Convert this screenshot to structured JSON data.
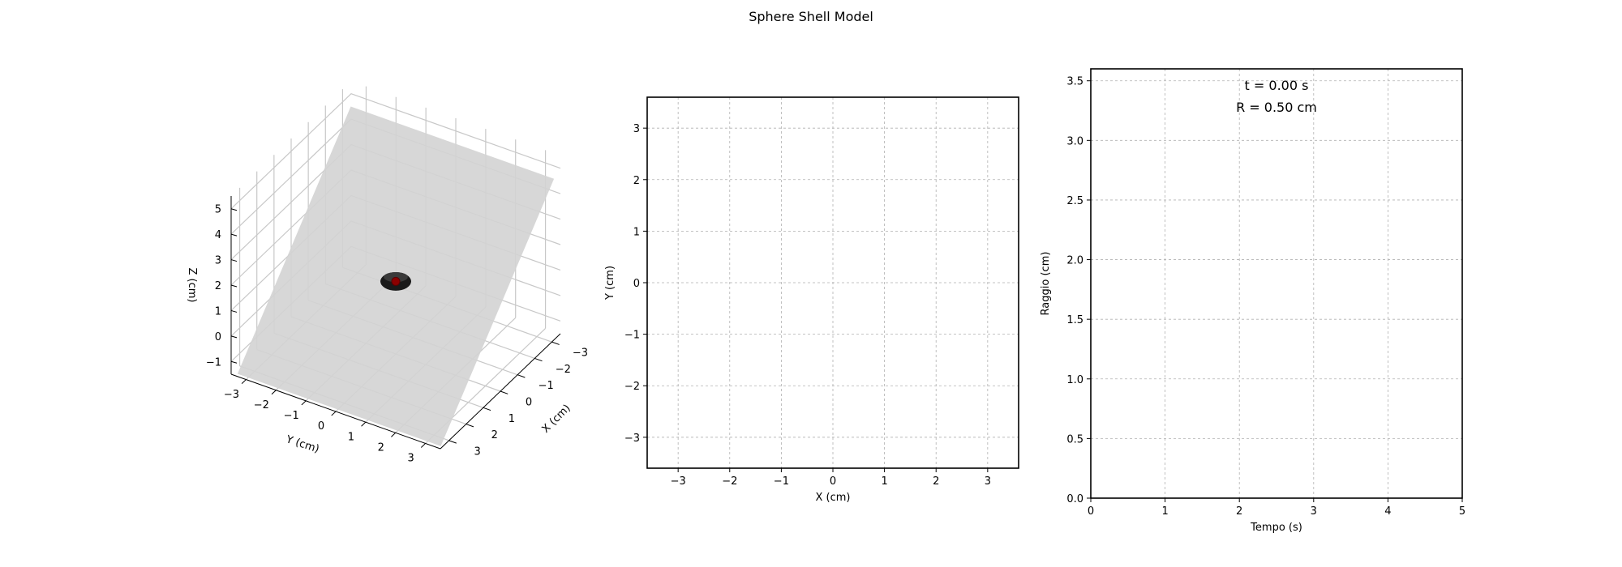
{
  "figure": {
    "title": "Sphere Shell Model"
  },
  "chart_data": [
    {
      "type": "surface3d",
      "xlabel": "X (cm)",
      "ylabel": "Y (cm)",
      "zlabel": "Z (cm)",
      "xlim": [
        -3.5,
        3.5
      ],
      "ylim": [
        -3.5,
        3.5
      ],
      "zlim": [
        -1.5,
        5.5
      ],
      "x_ticks": [
        -3,
        -2,
        -1,
        0,
        1,
        2,
        3
      ],
      "y_ticks": [
        -3,
        -2,
        -1,
        0,
        1,
        2,
        3
      ],
      "z_ticks": [
        -1,
        0,
        1,
        2,
        3,
        4,
        5
      ],
      "plane_color": "#d3d3d3",
      "sphere": {
        "center": [
          0,
          0,
          0
        ],
        "radius": 0.5,
        "color": "#1a1a1a",
        "marker_color": "#8b0000"
      },
      "grid": true
    },
    {
      "type": "line",
      "xlabel": "X (cm)",
      "ylabel": "Y (cm)",
      "xlim": [
        -3.6,
        3.6
      ],
      "ylim": [
        -3.6,
        3.6
      ],
      "x_ticks": [
        -3,
        -2,
        -1,
        0,
        1,
        2,
        3
      ],
      "y_ticks": [
        -3,
        -2,
        -1,
        0,
        1,
        2,
        3
      ],
      "series": [],
      "grid": true
    },
    {
      "type": "line",
      "xlabel": "Tempo (s)",
      "ylabel": "Raggio (cm)",
      "xlim": [
        0,
        5
      ],
      "ylim": [
        0,
        3.6
      ],
      "x_ticks": [
        0,
        1,
        2,
        3,
        4,
        5
      ],
      "y_ticks": [
        0.0,
        0.5,
        1.0,
        1.5,
        2.0,
        2.5,
        3.0,
        3.5
      ],
      "series": [],
      "grid": true,
      "annotations": [
        "t = 0.00 s",
        "R = 0.50 cm"
      ]
    }
  ]
}
